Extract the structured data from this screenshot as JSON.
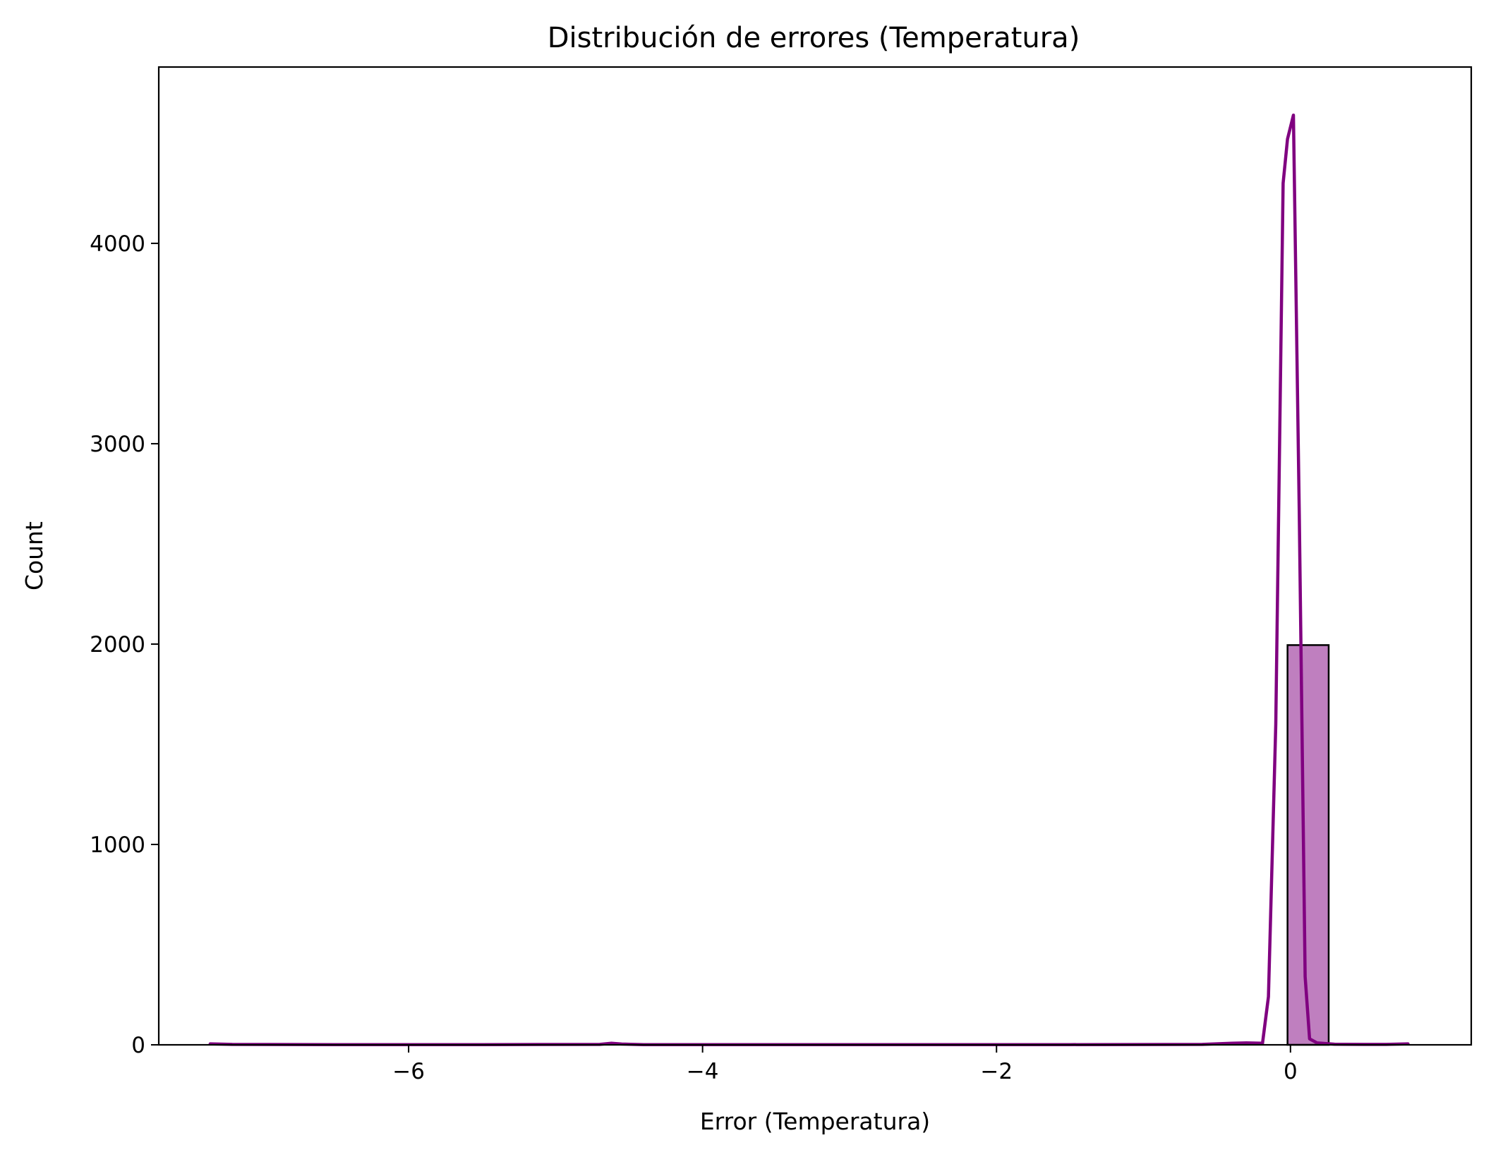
{
  "chart_data": {
    "type": "bar",
    "title": "Distribución de errores (Temperatura)",
    "xlabel": "Error (Temperatura)",
    "ylabel": "Count",
    "xlim": [
      -7.7,
      1.23
    ],
    "ylim": [
      0,
      4880
    ],
    "x_ticks": [
      -6,
      -4,
      -2,
      0
    ],
    "x_tick_labels": [
      "−6",
      "−4",
      "−2",
      "0"
    ],
    "y_ticks": [
      0,
      1000,
      2000,
      3000,
      4000
    ],
    "y_tick_labels": [
      "0",
      "1000",
      "2000",
      "3000",
      "4000"
    ],
    "grid": false,
    "bars": [
      {
        "x0": -0.02,
        "x1": 0.26,
        "count": 1995
      }
    ],
    "kde_line": {
      "x": [
        -7.35,
        -7.2,
        -6.5,
        -5.5,
        -4.7,
        -4.62,
        -4.55,
        -4.4,
        -3.5,
        -2.5,
        -1.5,
        -0.6,
        -0.4,
        -0.3,
        -0.19,
        -0.15,
        -0.1,
        -0.05,
        -0.02,
        0.02,
        0.06,
        0.1,
        0.13,
        0.18,
        0.3,
        0.5,
        0.65,
        0.8
      ],
      "y": [
        5,
        2,
        1,
        1,
        2,
        8,
        4,
        1,
        1,
        1,
        1,
        2,
        8,
        10,
        8,
        240,
        1600,
        4300,
        4520,
        4640,
        2650,
        340,
        30,
        10,
        3,
        2,
        2,
        5
      ]
    },
    "colors": {
      "bar_fill": "#bf7fbf",
      "bar_edge": "#000000",
      "line": "#800080"
    }
  }
}
